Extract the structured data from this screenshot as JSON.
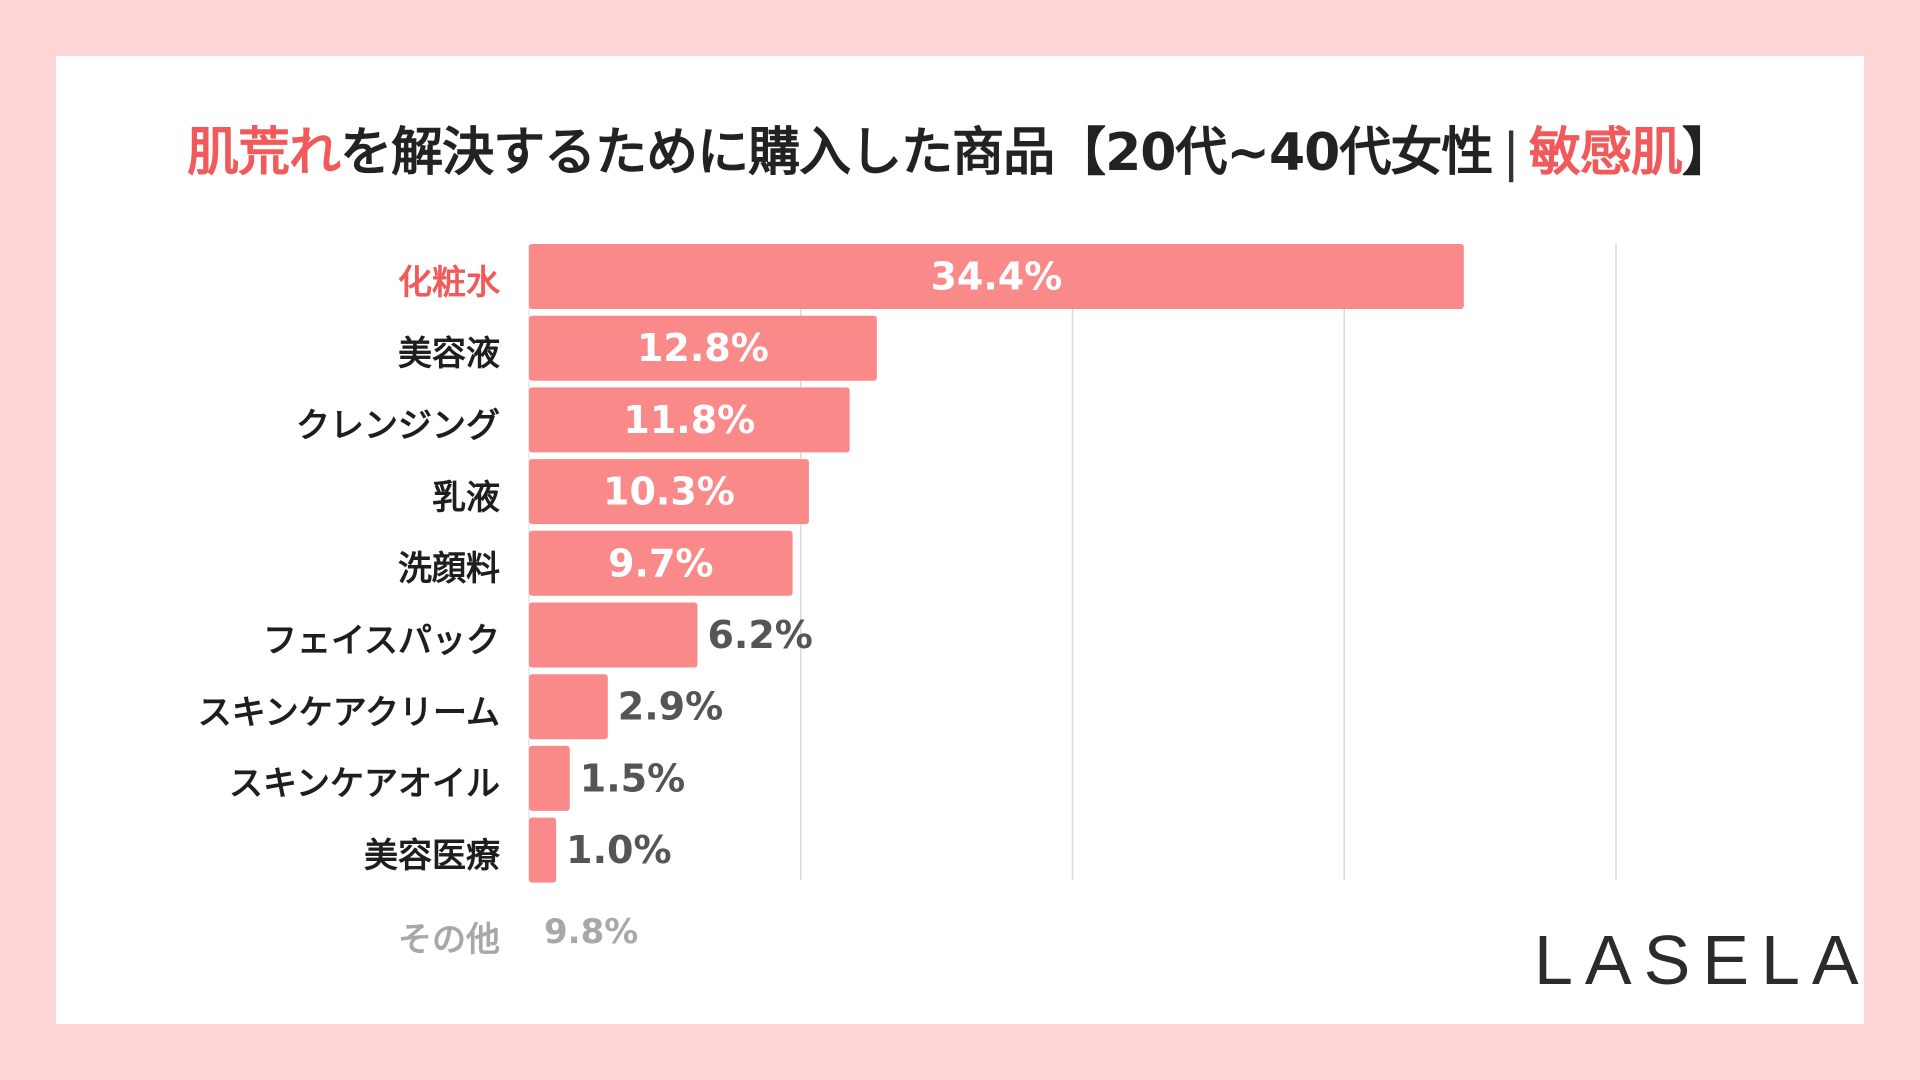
{
  "title": {
    "part1": "肌荒れ",
    "part2": "を解決するために購入した商品【20代~40代女性",
    "sep": "|",
    "part3": "敏感肌",
    "part4": "】"
  },
  "chart_data": {
    "type": "bar",
    "orientation": "horizontal",
    "categories": [
      "化粧水",
      "美容液",
      "クレンジング",
      "乳液",
      "洗顔料",
      "フェイスパック",
      "スキンケアクリーム",
      "スキンケアオイル",
      "美容医療"
    ],
    "values": [
      34.4,
      12.8,
      11.8,
      10.3,
      9.7,
      6.2,
      2.9,
      1.5,
      1.0
    ],
    "labels": [
      "34.4%",
      "12.8%",
      "11.8%",
      "10.3%",
      "9.7%",
      "6.2%",
      "2.9%",
      "1.5%",
      "1.0%"
    ],
    "xlim": [
      0,
      40
    ],
    "grid": true,
    "highlight_category": "化粧水",
    "other": {
      "label": "その他",
      "value_label": "9.8%"
    }
  },
  "colors": {
    "bar": "#fa8a8a",
    "highlight": "#f05a5a",
    "background": "#fdd5d6",
    "grid": "#d9d9d9"
  },
  "logo": "LASELA"
}
